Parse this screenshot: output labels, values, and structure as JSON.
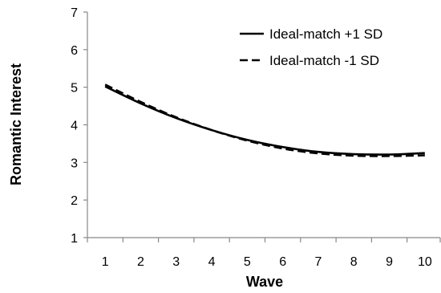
{
  "chart_data": {
    "type": "line",
    "title": "",
    "xlabel": "Wave",
    "ylabel": "Romantic Interest",
    "x": [
      1,
      2,
      3,
      4,
      5,
      6,
      7,
      8,
      9,
      10
    ],
    "xlim": [
      0.5,
      10.5
    ],
    "ylim": [
      1,
      7
    ],
    "yticks": [
      1,
      2,
      3,
      4,
      5,
      6,
      7
    ],
    "grid": false,
    "legend_position": "top-right",
    "series": [
      {
        "name": "Ideal-match +1 SD",
        "style": "solid",
        "color": "#000000",
        "values": [
          5.02,
          4.57,
          4.18,
          3.86,
          3.6,
          3.41,
          3.28,
          3.22,
          3.21,
          3.25
        ]
      },
      {
        "name": "Ideal-match -1 SD",
        "style": "dashed",
        "color": "#000000",
        "values": [
          5.07,
          4.61,
          4.2,
          3.86,
          3.58,
          3.37,
          3.24,
          3.18,
          3.17,
          3.19
        ]
      }
    ]
  }
}
